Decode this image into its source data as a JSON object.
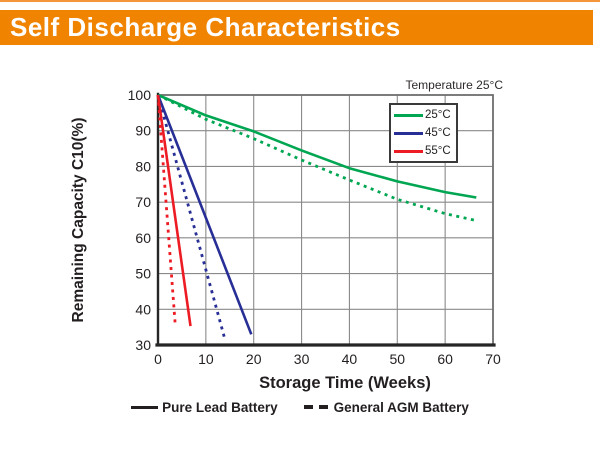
{
  "header": {
    "title": "Self Discharge Characteristics",
    "bar_color": "#F08300"
  },
  "chart_data": {
    "type": "line",
    "title": "Self Discharge Characteristics",
    "annotation": "Temperature 25°C",
    "xlabel": "Storage Time (Weeks)",
    "ylabel": "Remaining Capacity C10(%)",
    "xlim": [
      0,
      70
    ],
    "ylim": [
      30,
      100
    ],
    "xticks": [
      0,
      10,
      20,
      30,
      40,
      50,
      60,
      70
    ],
    "yticks": [
      100,
      90,
      80,
      70,
      60,
      50,
      40,
      30
    ],
    "grid": true,
    "legend_position": "top-right-inside",
    "colors": {
      "grid": "#8A8A8A",
      "border": "#6E6E6E",
      "axis": "#262626",
      "text": "#231F20",
      "green": "#00A651",
      "blue": "#272E95",
      "red": "#ED1C24"
    },
    "temp_legend": [
      {
        "label": "25°C",
        "color": "#00A651"
      },
      {
        "label": "45°C",
        "color": "#272E95"
      },
      {
        "label": "55°C",
        "color": "#ED1C24"
      }
    ],
    "style_legend": [
      {
        "label": "Pure Lead Battery",
        "style": "solid"
      },
      {
        "label": "General AGM Battery",
        "style": "dashed"
      }
    ],
    "series": [
      {
        "name": "25°C Pure Lead Battery",
        "color": "#00A651",
        "style": "solid",
        "points": [
          [
            0,
            100
          ],
          [
            10,
            94.3
          ],
          [
            20,
            89.8
          ],
          [
            30,
            84.5
          ],
          [
            40,
            79.5
          ],
          [
            50,
            75.8
          ],
          [
            60,
            72.8
          ],
          [
            66.5,
            71.3
          ]
        ]
      },
      {
        "name": "25°C General AGM Battery",
        "color": "#00A651",
        "style": "dashed",
        "points": [
          [
            0,
            100
          ],
          [
            10,
            93.2
          ],
          [
            20,
            87.8
          ],
          [
            30,
            81.8
          ],
          [
            40,
            76.2
          ],
          [
            50,
            70.8
          ],
          [
            60,
            66.8
          ],
          [
            66,
            65
          ]
        ]
      },
      {
        "name": "45°C Pure Lead Battery",
        "color": "#272E95",
        "style": "solid",
        "points": [
          [
            0,
            100
          ],
          [
            19.5,
            33
          ]
        ]
      },
      {
        "name": "45°C General AGM Battery",
        "color": "#272E95",
        "style": "dashed",
        "points": [
          [
            0,
            100
          ],
          [
            14,
            31.5
          ]
        ]
      },
      {
        "name": "55°C Pure Lead Battery",
        "color": "#ED1C24",
        "style": "solid",
        "points": [
          [
            0,
            100
          ],
          [
            6.8,
            35.3
          ]
        ]
      },
      {
        "name": "55°C General AGM Battery",
        "color": "#ED1C24",
        "style": "dashed",
        "points": [
          [
            0,
            100
          ],
          [
            3.6,
            35.8
          ]
        ]
      }
    ]
  }
}
